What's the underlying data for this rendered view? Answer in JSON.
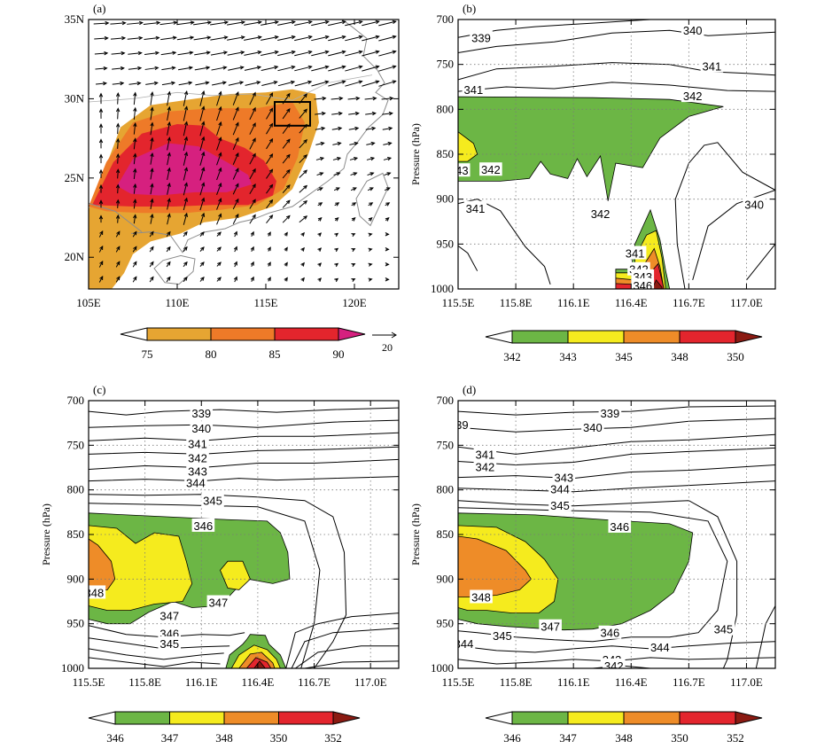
{
  "chart_data": [
    {
      "panel": "(a)",
      "type": "heatmap",
      "x_ticks": [
        "105E",
        "110E",
        "115E",
        "120E"
      ],
      "y_ticks": [
        "20N",
        "25N",
        "30N",
        "35N"
      ],
      "xlim": [
        105,
        122.5
      ],
      "ylim": [
        18,
        35
      ],
      "fill_levels": [
        "75",
        "80",
        "85",
        "90"
      ],
      "fill_colors": [
        "#ffffff",
        "#e6a532",
        "#ee7a28",
        "#e3252d",
        "#d6207f"
      ],
      "vector_reference": "20",
      "box": {
        "lon": [
          115.5,
          117.5
        ],
        "lat": [
          28.3,
          29.8
        ]
      }
    },
    {
      "panel": "(b)",
      "type": "heatmap",
      "ylabel": "Pressure (hPa)",
      "x_ticks": [
        "115.5E",
        "115.8E",
        "116.1E",
        "116.4E",
        "116.7E",
        "117.0E"
      ],
      "y_ticks": [
        "700",
        "750",
        "800",
        "850",
        "900",
        "950",
        "1000"
      ],
      "xlim": [
        115.5,
        117.15
      ],
      "ylim": [
        1000,
        700
      ],
      "fill_levels": [
        "342",
        "343",
        "345",
        "348",
        "350"
      ],
      "fill_colors": [
        "#ffffff",
        "#6cb645",
        "#f5eb1e",
        "#ee8c28",
        "#e3252d",
        "#8b1a12"
      ],
      "contour_labels": [
        "339",
        "340",
        "341",
        "341",
        "342",
        "43",
        "342",
        "342",
        "341",
        "340",
        "341",
        "342",
        "343",
        "346"
      ]
    },
    {
      "panel": "(c)",
      "type": "heatmap",
      "ylabel": "Pressure (hPa)",
      "x_ticks": [
        "115.5E",
        "115.8E",
        "116.1E",
        "116.4E",
        "116.7E",
        "117.0E"
      ],
      "y_ticks": [
        "700",
        "750",
        "800",
        "850",
        "900",
        "950",
        "1000"
      ],
      "xlim": [
        115.5,
        117.15
      ],
      "ylim": [
        1000,
        700
      ],
      "fill_levels": [
        "346",
        "347",
        "348",
        "350",
        "352"
      ],
      "fill_colors": [
        "#ffffff",
        "#6cb645",
        "#f5eb1e",
        "#ee8c28",
        "#e3252d",
        "#8b1a12"
      ],
      "contour_labels": [
        "339",
        "340",
        "341",
        "342",
        "343",
        "344",
        "345",
        "346",
        "348",
        "347",
        "347",
        "346",
        "345"
      ]
    },
    {
      "panel": "(d)",
      "type": "heatmap",
      "ylabel": "Pressure (hPa)",
      "x_ticks": [
        "115.5E",
        "115.8E",
        "116.1E",
        "116.4E",
        "116.7E",
        "117.0E"
      ],
      "y_ticks": [
        "700",
        "750",
        "800",
        "850",
        "900",
        "950",
        "1000"
      ],
      "xlim": [
        115.5,
        117.15
      ],
      "ylim": [
        1000,
        700
      ],
      "fill_levels": [
        "346",
        "347",
        "348",
        "350",
        "352"
      ],
      "fill_colors": [
        "#ffffff",
        "#6cb645",
        "#f5eb1e",
        "#ee8c28",
        "#e3252d",
        "#8b1a12"
      ],
      "contour_labels": [
        "39",
        "339",
        "340",
        "341",
        "342",
        "343",
        "344",
        "345",
        "346",
        "348",
        "347",
        "346",
        "345",
        "344",
        "345",
        "344",
        "343",
        "342"
      ]
    }
  ]
}
